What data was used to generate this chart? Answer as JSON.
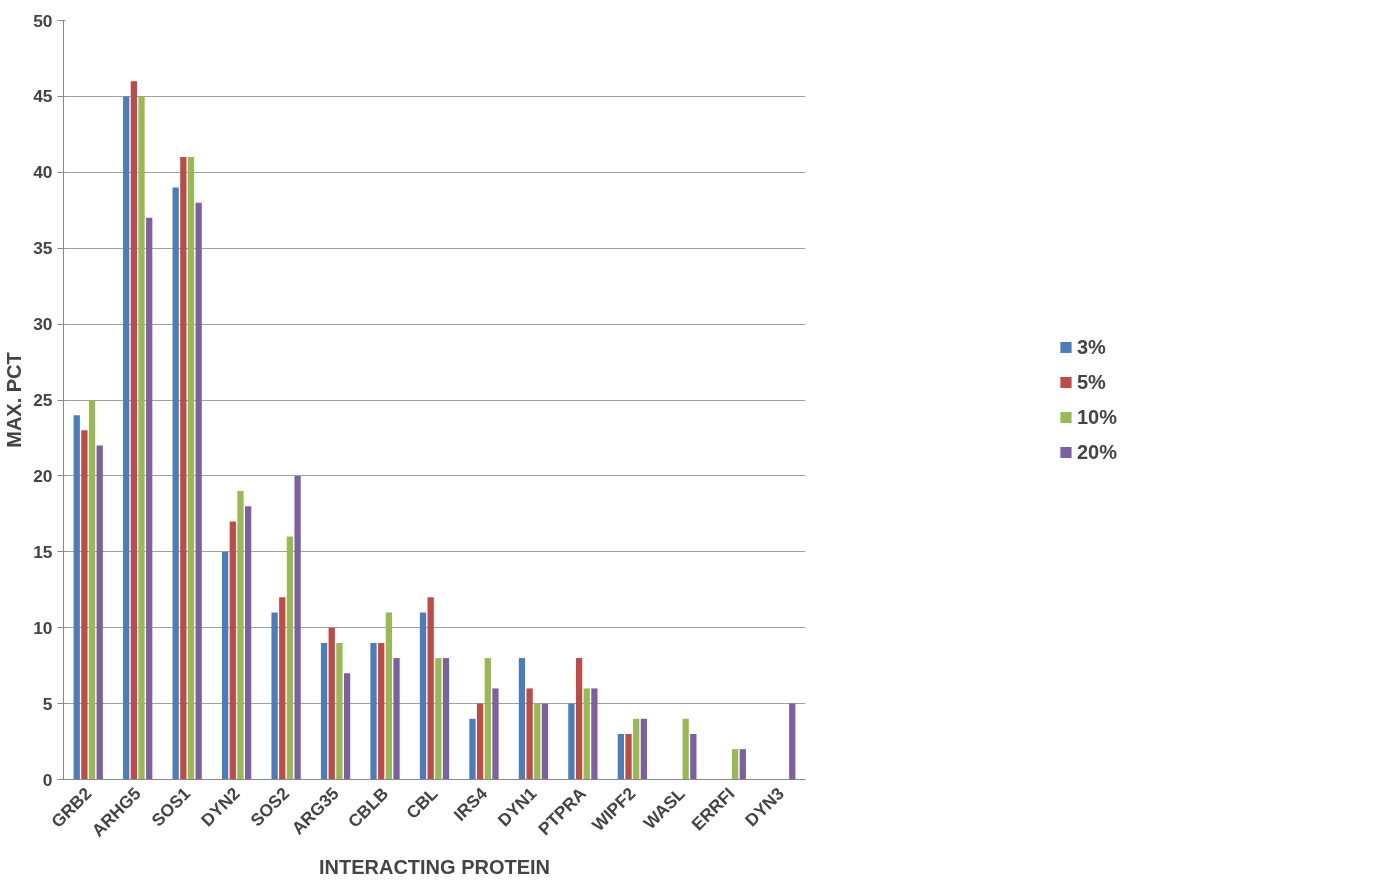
{
  "chart_data": {
    "type": "bar",
    "xlabel": "INTERACTING PROTEIN",
    "ylabel": "MAX. PCT",
    "categories": [
      "GRB2",
      "ARHG5",
      "SOS1",
      "DYN2",
      "SOS2",
      "ARG35",
      "CBLB",
      "CBL",
      "IRS4",
      "DYN1",
      "PTPRA",
      "WIPF2",
      "WASL",
      "ERRFI",
      "DYN3"
    ],
    "series": [
      {
        "name": "3%",
        "color": "#4a7ebb",
        "values": [
          24,
          45,
          39,
          15,
          11,
          9,
          9,
          11,
          4,
          8,
          5,
          3,
          null,
          null,
          null
        ]
      },
      {
        "name": "5%",
        "color": "#be4b48",
        "values": [
          23,
          46,
          41,
          17,
          12,
          10,
          9,
          12,
          5,
          6,
          8,
          3,
          null,
          null,
          null
        ]
      },
      {
        "name": "10%",
        "color": "#98b954",
        "values": [
          25,
          45,
          41,
          19,
          16,
          9,
          11,
          8,
          8,
          5,
          6,
          4,
          4,
          2,
          null
        ]
      },
      {
        "name": "20%",
        "color": "#7d60a0",
        "values": [
          22,
          37,
          38,
          18,
          20,
          7,
          8,
          8,
          6,
          5,
          6,
          4,
          3,
          2,
          5
        ]
      }
    ],
    "ylim": [
      0,
      50
    ],
    "yticks": [
      0,
      5,
      10,
      15,
      20,
      25,
      30,
      35,
      40,
      45,
      50
    ],
    "grid": "y",
    "legend": "right"
  }
}
